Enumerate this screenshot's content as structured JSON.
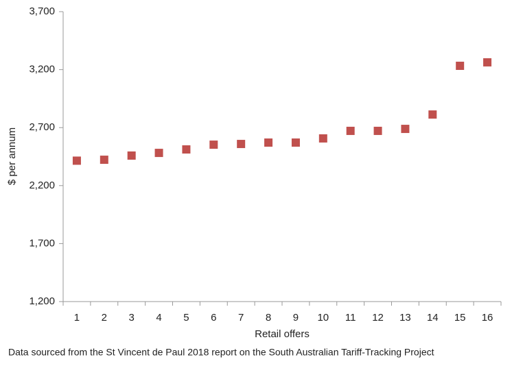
{
  "chart_data": {
    "type": "scatter",
    "x_label": "Retail offers",
    "y_label": "$ per annum",
    "footnote": "Data sourced from the St Vincent de Paul 2018 report on the South Australian Tariff-Tracking Project",
    "categories": [
      "1",
      "2",
      "3",
      "4",
      "5",
      "6",
      "7",
      "8",
      "9",
      "10",
      "11",
      "12",
      "13",
      "14",
      "15",
      "16"
    ],
    "values": [
      2415,
      2423,
      2459,
      2482,
      2512,
      2553,
      2559,
      2571,
      2571,
      2607,
      2672,
      2672,
      2689,
      2813,
      3233,
      3263
    ],
    "color": "#c0504d",
    "ylim": [
      1200,
      3700
    ],
    "yticks": [
      {
        "value": 1200,
        "label": "1,200"
      },
      {
        "value": 1700,
        "label": "1,700"
      },
      {
        "value": 2200,
        "label": "2,200"
      },
      {
        "value": 2700,
        "label": "2,700"
      },
      {
        "value": 3200,
        "label": "3,200"
      },
      {
        "value": 3700,
        "label": "3,700"
      }
    ]
  }
}
